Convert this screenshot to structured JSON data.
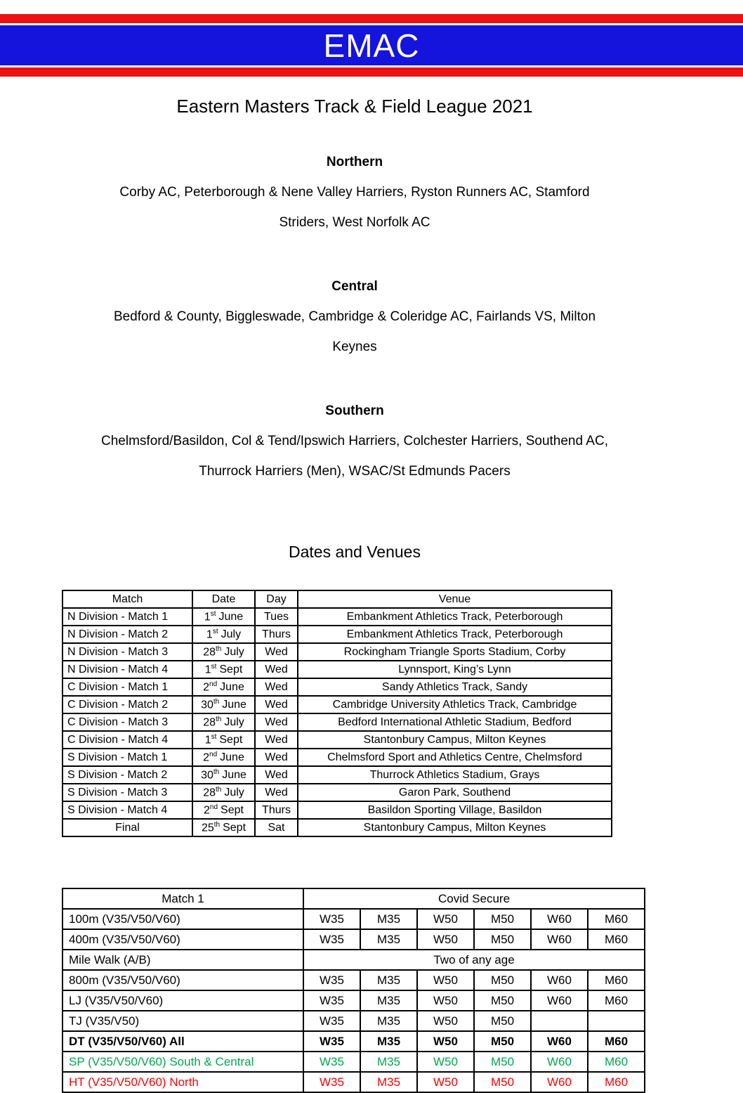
{
  "banner": {
    "title": "EMAC",
    "colors": {
      "red": "#ee1111",
      "blue": "#1414dd",
      "text": "#ffffff"
    }
  },
  "page_title": "Eastern Masters Track & Field League 2021",
  "divisions": [
    {
      "name": "Northern",
      "lines": [
        "Corby AC, Peterborough & Nene Valley Harriers, Ryston Runners AC, Stamford",
        "Striders, West Norfolk AC"
      ]
    },
    {
      "name": "Central",
      "lines": [
        "Bedford & County, Biggleswade, Cambridge & Coleridge AC, Fairlands VS, Milton",
        "Keynes"
      ]
    },
    {
      "name": "Southern",
      "lines": [
        "Chelmsford/Basildon, Col & Tend/Ipswich Harriers, Colchester Harriers, Southend AC,",
        "Thurrock Harriers (Men), WSAC/St Edmunds Pacers"
      ]
    }
  ],
  "dates_section": {
    "heading": "Dates and Venues",
    "columns": [
      "Match",
      "Date",
      "Day",
      "Venue"
    ],
    "rows": [
      {
        "match": "N Division - Match 1",
        "date_num": "1",
        "date_suf": "st",
        "date_rest": "June",
        "day": "Tues",
        "venue": "Embankment Athletics Track, Peterborough",
        "match_center": false
      },
      {
        "match": "N Division - Match 2",
        "date_num": "1",
        "date_suf": "st",
        "date_rest": "July",
        "day": "Thurs",
        "venue": "Embankment Athletics Track, Peterborough",
        "match_center": false
      },
      {
        "match": "N Division - Match 3",
        "date_num": "28",
        "date_suf": "th",
        "date_rest": "July",
        "day": "Wed",
        "venue": "Rockingham Triangle Sports Stadium, Corby",
        "match_center": false
      },
      {
        "match": "N Division - Match 4",
        "date_num": "1",
        "date_suf": "st",
        "date_rest": "Sept",
        "day": "Wed",
        "venue": "Lynnsport, King’s Lynn",
        "match_center": false
      },
      {
        "match": "C Division - Match 1",
        "date_num": "2",
        "date_suf": "nd",
        "date_rest": "June",
        "day": "Wed",
        "venue": "Sandy Athletics Track, Sandy",
        "match_center": false
      },
      {
        "match": "C Division - Match 2",
        "date_num": "30",
        "date_suf": "th",
        "date_rest": "June",
        "day": "Wed",
        "venue": "Cambridge University Athletics Track, Cambridge",
        "match_center": false
      },
      {
        "match": "C Division - Match 3",
        "date_num": "28",
        "date_suf": "th",
        "date_rest": "July",
        "day": "Wed",
        "venue": "Bedford International Athletic Stadium, Bedford",
        "match_center": false
      },
      {
        "match": "C Division - Match 4",
        "date_num": "1",
        "date_suf": "st",
        "date_rest": "Sept",
        "day": "Wed",
        "venue": "Stantonbury Campus, Milton Keynes",
        "match_center": false
      },
      {
        "match": "S Division - Match 1",
        "date_num": "2",
        "date_suf": "nd",
        "date_rest": "June",
        "day": "Wed",
        "venue": "Chelmsford Sport and Athletics Centre, Chelmsford",
        "match_center": false
      },
      {
        "match": "S Division - Match 2",
        "date_num": "30",
        "date_suf": "th",
        "date_rest": "June",
        "day": "Wed",
        "venue": "Thurrock Athletics Stadium, Grays",
        "match_center": false
      },
      {
        "match": "S Division - Match 3",
        "date_num": "28",
        "date_suf": "th",
        "date_rest": "July",
        "day": "Wed",
        "venue": "Garon Park, Southend",
        "match_center": false
      },
      {
        "match": "S Division - Match 4",
        "date_num": "2",
        "date_suf": "nd",
        "date_rest": "Sept",
        "day": "Thurs",
        "venue": "Basildon Sporting Village, Basildon",
        "match_center": false
      },
      {
        "match": "Final",
        "date_num": "25",
        "date_suf": "th",
        "date_rest": "Sept",
        "day": "Sat",
        "venue": "Stantonbury Campus, Milton Keynes",
        "match_center": true
      }
    ]
  },
  "events_table": {
    "header_left": "Match 1",
    "header_right": "Covid Secure",
    "text_colors": {
      "green": "#00a651",
      "red": "#ff0000"
    },
    "rows": [
      {
        "event": "100m (V35/V50/V60)",
        "cells": [
          "W35",
          "M35",
          "W50",
          "M50",
          "W60",
          "M60"
        ],
        "style": "normal"
      },
      {
        "event": "400m (V35/V50/V60)",
        "cells": [
          "W35",
          "M35",
          "W50",
          "M50",
          "W60",
          "M60"
        ],
        "style": "normal"
      },
      {
        "event": "Mile Walk (A/B)",
        "merged": "Two of any age",
        "style": "normal"
      },
      {
        "event": "800m (V35/V50/V60)",
        "cells": [
          "W35",
          "M35",
          "W50",
          "M50",
          "W60",
          "M60"
        ],
        "style": "normal"
      },
      {
        "event": "LJ (V35/V50/V60)",
        "cells": [
          "W35",
          "M35",
          "W50",
          "M50",
          "W60",
          "M60"
        ],
        "style": "normal"
      },
      {
        "event": "TJ (V35/V50)",
        "cells": [
          "W35",
          "M35",
          "W50",
          "M50",
          "",
          ""
        ],
        "style": "normal"
      },
      {
        "event": "DT (V35/V50/V60) All",
        "cells": [
          "W35",
          "M35",
          "W50",
          "M50",
          "W60",
          "M60"
        ],
        "style": "bold"
      },
      {
        "event": "SP (V35/V50/V60) South & Central",
        "cells": [
          "W35",
          "M35",
          "W50",
          "M50",
          "W60",
          "M60"
        ],
        "style": "green"
      },
      {
        "event": "HT (V35/V50/V60) North",
        "cells": [
          "W35",
          "M35",
          "W50",
          "M50",
          "W60",
          "M60"
        ],
        "style": "red"
      }
    ]
  }
}
